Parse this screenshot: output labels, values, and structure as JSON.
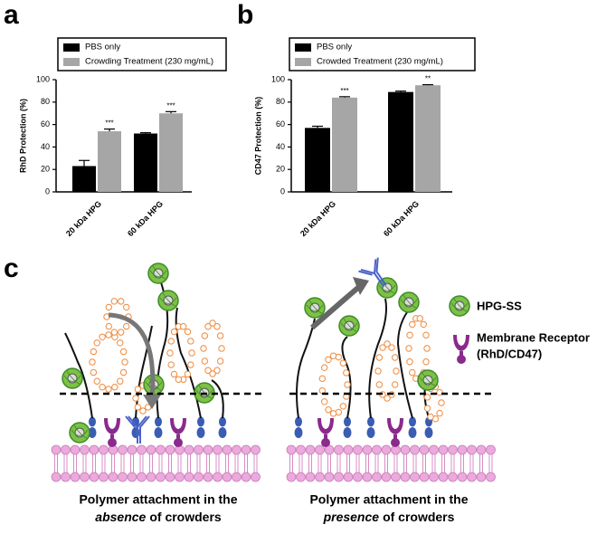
{
  "panels": [
    "a",
    "b",
    "c"
  ],
  "chart_data": [
    {
      "type": "bar",
      "y_label": "RhD Protection (%)",
      "categories": [
        "20 kDa HPG",
        "60 kDa HPG"
      ],
      "series": [
        {
          "name": "PBS only",
          "color": "#000000",
          "values": [
            23,
            52
          ],
          "errors": [
            5,
            0.7
          ]
        },
        {
          "name": "Crowding Treatment (230 mg/mL)",
          "color": "#a6a6a6",
          "values": [
            54,
            70
          ],
          "errors": [
            2,
            1.5
          ],
          "significance": [
            "***",
            "***"
          ]
        }
      ],
      "ylim": [
        0,
        100
      ],
      "yticks": [
        0,
        20,
        40,
        60,
        80,
        100
      ]
    },
    {
      "type": "bar",
      "y_label": "CD47 Protection (%)",
      "categories": [
        "20 kDa HPG",
        "60 kDa HPG"
      ],
      "series": [
        {
          "name": "PBS only",
          "color": "#000000",
          "values": [
            57,
            89
          ],
          "errors": [
            1.5,
            0.8
          ]
        },
        {
          "name": "Crowded Treatment (230 mg/mL)",
          "color": "#a6a6a6",
          "values": [
            84,
            95
          ],
          "errors": [
            0.8,
            0.5
          ],
          "significance": [
            "***",
            "**"
          ]
        }
      ],
      "ylim": [
        0,
        100
      ],
      "yticks": [
        0,
        20,
        40,
        60,
        80,
        100
      ]
    }
  ],
  "diagram": {
    "legend": [
      {
        "lines": [
          "HPG-SS"
        ]
      },
      {
        "lines": [
          "Membrane Receptor",
          "(RhD/CD47)"
        ]
      }
    ],
    "captions": [
      {
        "line1": "Polymer attachment in the",
        "emphasis": "absence",
        "rest": "of crowders"
      },
      {
        "line1": "Polymer attachment in the",
        "emphasis": "presence",
        "rest": "of crowders"
      }
    ]
  }
}
